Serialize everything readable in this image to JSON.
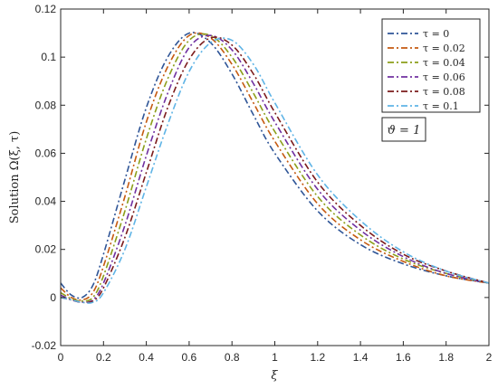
{
  "chart_data": {
    "type": "line",
    "xlabel": "ξ",
    "ylabel": "Solution Ω(ξ, τ)",
    "xlim": [
      0,
      2
    ],
    "ylim": [
      -0.02,
      0.12
    ],
    "x_ticks": [
      "0",
      "0.2",
      "0.4",
      "0.6",
      "0.8",
      "1",
      "1.2",
      "1.4",
      "1.6",
      "1.8",
      "2"
    ],
    "y_ticks": [
      "-0.02",
      "0",
      "0.02",
      "0.04",
      "0.06",
      "0.08",
      "0.1",
      "0.12"
    ],
    "grid": false,
    "legend_position": "top-right",
    "annotation": "ϑ = 1",
    "series": [
      {
        "name": "τ = 0",
        "color": "#2f5597",
        "x": [
          0,
          0.05,
          0.1,
          0.15,
          0.2,
          0.3,
          0.4,
          0.5,
          0.6,
          0.7,
          0.8,
          0.9,
          1.0,
          1.2,
          1.4,
          1.6,
          1.8,
          2.0
        ],
        "values": [
          0.006,
          0.001,
          0.0,
          0.005,
          0.018,
          0.049,
          0.079,
          0.1,
          0.11,
          0.106,
          0.093,
          0.076,
          0.06,
          0.036,
          0.022,
          0.014,
          0.009,
          0.006
        ]
      },
      {
        "name": "τ = 0.02",
        "color": "#c55a11",
        "x": [
          0,
          0.05,
          0.1,
          0.15,
          0.2,
          0.3,
          0.4,
          0.5,
          0.6,
          0.7,
          0.8,
          0.9,
          1.0,
          1.2,
          1.4,
          1.6,
          1.8,
          2.0
        ],
        "values": [
          0.004,
          0.0,
          -0.001,
          0.002,
          0.013,
          0.042,
          0.073,
          0.096,
          0.109,
          0.108,
          0.097,
          0.081,
          0.065,
          0.039,
          0.024,
          0.015,
          0.009,
          0.006
        ]
      },
      {
        "name": "τ = 0.04",
        "color": "#8c9e1a",
        "x": [
          0,
          0.05,
          0.1,
          0.15,
          0.2,
          0.3,
          0.4,
          0.5,
          0.6,
          0.7,
          0.8,
          0.9,
          1.0,
          1.2,
          1.4,
          1.6,
          1.8,
          2.0
        ],
        "values": [
          0.002,
          -0.0005,
          -0.0015,
          0.0,
          0.009,
          0.036,
          0.066,
          0.091,
          0.107,
          0.109,
          0.1,
          0.085,
          0.069,
          0.042,
          0.026,
          0.016,
          0.01,
          0.006
        ]
      },
      {
        "name": "τ = 0.06",
        "color": "#7030a0",
        "x": [
          0,
          0.05,
          0.1,
          0.15,
          0.2,
          0.3,
          0.4,
          0.5,
          0.6,
          0.7,
          0.8,
          0.9,
          1.0,
          1.2,
          1.4,
          1.6,
          1.8,
          2.0
        ],
        "values": [
          0.001,
          -0.001,
          -0.002,
          -0.001,
          0.006,
          0.03,
          0.059,
          0.085,
          0.104,
          0.109,
          0.103,
          0.089,
          0.073,
          0.045,
          0.028,
          0.017,
          0.01,
          0.006
        ]
      },
      {
        "name": "τ = 0.08",
        "color": "#7b1b1b",
        "x": [
          0,
          0.05,
          0.1,
          0.15,
          0.2,
          0.3,
          0.4,
          0.5,
          0.6,
          0.7,
          0.8,
          0.9,
          1.0,
          1.2,
          1.4,
          1.6,
          1.8,
          2.0
        ],
        "values": [
          0.0,
          -0.001,
          -0.002,
          -0.0015,
          0.004,
          0.025,
          0.052,
          0.079,
          0.099,
          0.108,
          0.105,
          0.093,
          0.077,
          0.048,
          0.03,
          0.018,
          0.011,
          0.006
        ]
      },
      {
        "name": "τ = 0.1",
        "color": "#5fb4e6",
        "x": [
          0,
          0.05,
          0.1,
          0.15,
          0.2,
          0.3,
          0.4,
          0.5,
          0.6,
          0.7,
          0.8,
          0.9,
          1.0,
          1.2,
          1.4,
          1.6,
          1.8,
          2.0
        ],
        "values": [
          0.0,
          -0.001,
          -0.002,
          -0.002,
          0.002,
          0.02,
          0.046,
          0.072,
          0.094,
          0.106,
          0.107,
          0.097,
          0.081,
          0.051,
          0.032,
          0.019,
          0.011,
          0.006
        ]
      }
    ]
  }
}
